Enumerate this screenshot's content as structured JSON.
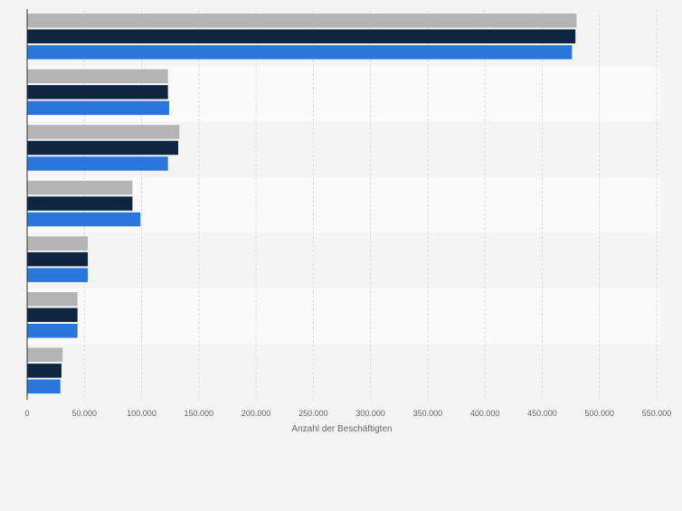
{
  "chart_data": {
    "type": "bar",
    "orientation": "horizontal",
    "categories": [
      "",
      "",
      "",
      "",
      "",
      "",
      ""
    ],
    "series": [
      {
        "color": "#b4b4b4",
        "values": [
          480000,
          123000,
          133000,
          92000,
          53000,
          44000,
          31000
        ]
      },
      {
        "color": "#0d2540",
        "values": [
          479000,
          123000,
          132000,
          92000,
          53000,
          44000,
          30000
        ]
      },
      {
        "color": "#2a76dd",
        "values": [
          476000,
          124000,
          123000,
          99000,
          53000,
          44000,
          29000
        ]
      }
    ],
    "xlim": [
      0,
      550000
    ],
    "xticks": [
      0,
      50000,
      100000,
      150000,
      200000,
      250000,
      300000,
      350000,
      400000,
      450000,
      500000,
      550000
    ],
    "xtick_labels": [
      "0",
      "50.000",
      "100.000",
      "150.000",
      "200.000",
      "250.000",
      "300.000",
      "350.000",
      "400.000",
      "450.000",
      "500.000",
      "550.000"
    ],
    "xlabel": "Anzahl der Beschäftigten",
    "ylabel": "",
    "title": "",
    "grid": true,
    "legend": "none"
  }
}
